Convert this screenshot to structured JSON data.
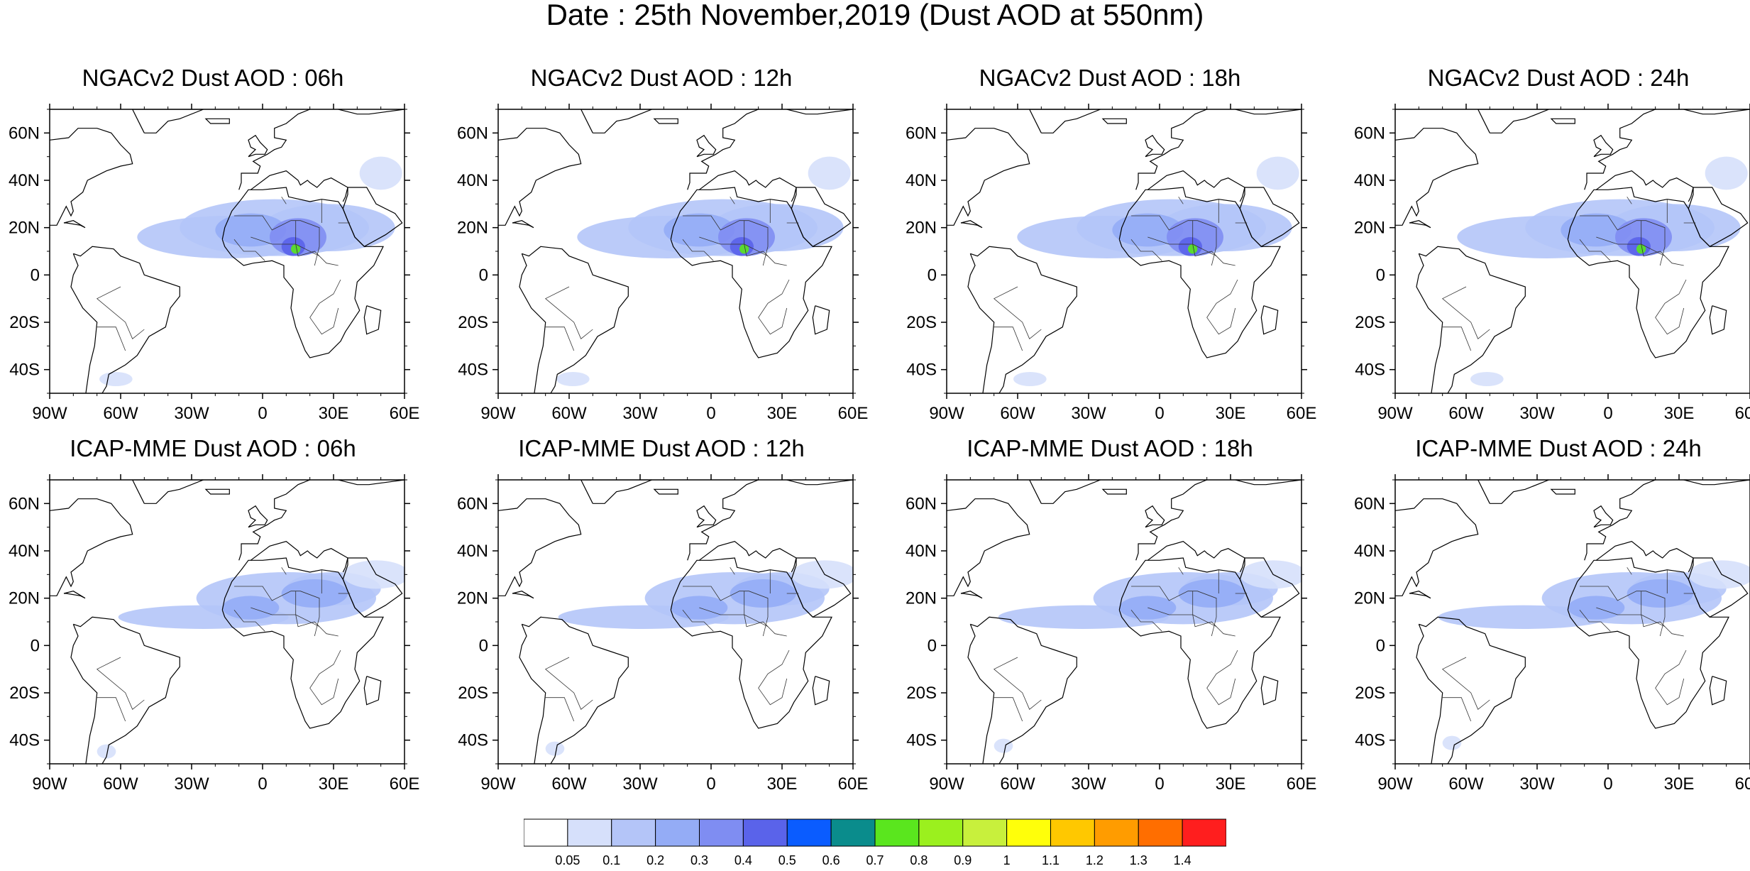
{
  "title": "Date : 25th November,2019 (Dust AOD at 550nm)",
  "axis_labels": {
    "lat": [
      "60N",
      "40N",
      "20N",
      "0",
      "20S",
      "40S"
    ],
    "lon": [
      "90W",
      "60W",
      "30W",
      "0",
      "30E",
      "60E"
    ],
    "lat_values": [
      60,
      40,
      20,
      0,
      -20,
      -40
    ],
    "lon_values": [
      -90,
      -60,
      -30,
      0,
      30,
      60
    ]
  },
  "map_extent": {
    "lon": [
      -90,
      60
    ],
    "lat": [
      -50,
      70
    ]
  },
  "panels": [
    {
      "title": "NGACv2 Dust AOD : 06h",
      "model": "NGACv2",
      "hour": "06h"
    },
    {
      "title": "NGACv2 Dust AOD : 12h",
      "model": "NGACv2",
      "hour": "12h"
    },
    {
      "title": "NGACv2 Dust AOD : 18h",
      "model": "NGACv2",
      "hour": "18h"
    },
    {
      "title": "NGACv2 Dust AOD : 24h",
      "model": "NGACv2",
      "hour": "24h"
    },
    {
      "title": "ICAP-MME Dust AOD : 06h",
      "model": "ICAP-MME",
      "hour": "06h"
    },
    {
      "title": "ICAP-MME Dust AOD : 12h",
      "model": "ICAP-MME",
      "hour": "12h"
    },
    {
      "title": "ICAP-MME Dust AOD : 18h",
      "model": "ICAP-MME",
      "hour": "18h"
    },
    {
      "title": "ICAP-MME Dust AOD : 24h",
      "model": "ICAP-MME",
      "hour": "24h"
    }
  ],
  "colorbar": {
    "labels": [
      "0.05",
      "0.1",
      "0.2",
      "0.3",
      "0.4",
      "0.5",
      "0.6",
      "0.7",
      "0.8",
      "0.9",
      "1",
      "1.1",
      "1.2",
      "1.3",
      "1.4"
    ],
    "colors": [
      "#ffffff",
      "#d6e0fb",
      "#b4c5f8",
      "#94acf6",
      "#7f8df2",
      "#5a63ea",
      "#0a5cff",
      "#0a8c8c",
      "#5ae61e",
      "#9bf01e",
      "#c8f03c",
      "#ffff0a",
      "#ffc800",
      "#ff9c00",
      "#ff6e00",
      "#ff1e1e"
    ]
  }
}
